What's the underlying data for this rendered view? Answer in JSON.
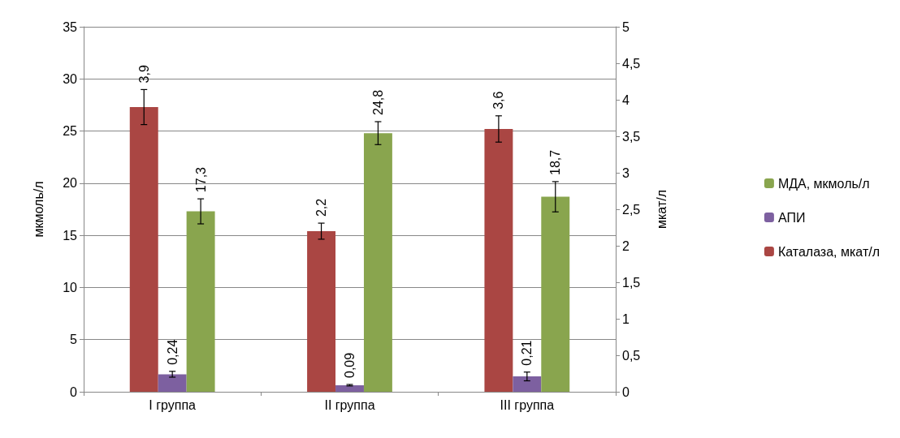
{
  "chart_data": {
    "type": "bar",
    "ylabel": "мкмоль/л",
    "y2label": "мкат/л",
    "categories": [
      "I группа",
      "II группа",
      "III группа"
    ],
    "series": [
      {
        "name": "Каталаза, мкат/л",
        "color": "#aa4643",
        "axis": "y2",
        "values": [
          3.9,
          2.2,
          3.6
        ],
        "errors": [
          0.24,
          0.11,
          0.18
        ],
        "value_labels": [
          "3,9",
          "2,2",
          "3,6"
        ]
      },
      {
        "name": "АПИ",
        "color": "#7d60a0",
        "axis": "y2",
        "values": [
          0.24,
          0.09,
          0.21
        ],
        "errors": [
          0.04,
          0.01,
          0.06
        ],
        "value_labels": [
          "0,24",
          "0,09",
          "0,21"
        ]
      },
      {
        "name": "МДА, мкмоль/л",
        "color": "#89a54e",
        "values": [
          17.3,
          24.8,
          18.7
        ],
        "errors": [
          1.2,
          1.1,
          1.45
        ],
        "value_labels": [
          "17,3",
          "24,8",
          "18,7"
        ]
      }
    ],
    "ylim": [
      0,
      35
    ],
    "yticks": [
      0,
      5,
      10,
      15,
      20,
      25,
      30,
      35
    ],
    "y2lim": [
      0,
      5
    ],
    "y2ticks": [
      0,
      {
        "value": 0.5,
        "label": "0,5"
      },
      1,
      {
        "value": 1.5,
        "label": "1,5"
      },
      2,
      {
        "value": 2.5,
        "label": "2,5"
      },
      3,
      {
        "value": 3.5,
        "label": "3,5"
      },
      4,
      {
        "value": 4.5,
        "label": "4,5"
      },
      5
    ],
    "grid": "y",
    "legend": "right"
  }
}
